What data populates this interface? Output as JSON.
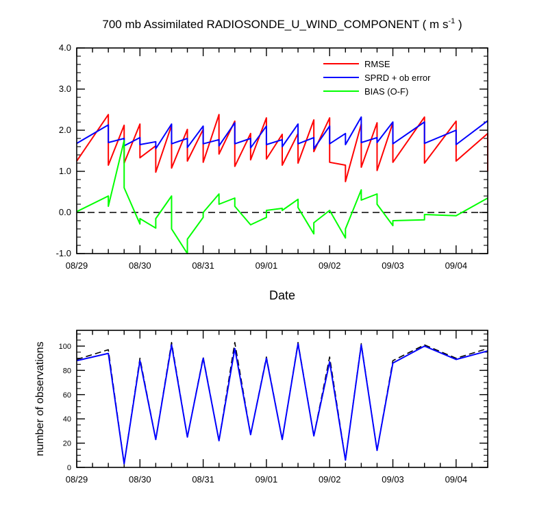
{
  "chart_data": [
    {
      "type": "line",
      "title_main": "700 mb Assimilated RADIOSONDE_U_WIND_COMPONENT ( m s",
      "title_sup": "-1",
      "title_end": " )",
      "xlabel": "Date",
      "xticklabels": [
        "08/29",
        "08/30",
        "08/31",
        "09/01",
        "09/02",
        "09/03",
        "09/04"
      ],
      "yticklabels": [
        "4.0",
        "3.0",
        "2.0",
        "1.0",
        "0.0",
        "-1.0"
      ],
      "yticks": [
        4,
        3,
        2,
        1,
        0,
        -1
      ],
      "ylim": [
        -1,
        4
      ],
      "xlim": [
        0,
        6.5
      ],
      "zero_line": "dashed",
      "legend_placement": "top-right",
      "series": [
        {
          "name": "RMSE",
          "color": "#ff0000",
          "points": [
            [
              0,
              1.25
            ],
            [
              0.5,
              2.38
            ],
            [
              0.5,
              1.15
            ],
            [
              0.75,
              2.12
            ],
            [
              0.75,
              1.2
            ],
            [
              1.0,
              2.15
            ],
            [
              1.0,
              1.33
            ],
            [
              1.25,
              1.62
            ],
            [
              1.25,
              0.98
            ],
            [
              1.5,
              2.12
            ],
            [
              1.5,
              1.08
            ],
            [
              1.75,
              2.02
            ],
            [
              1.75,
              1.25
            ],
            [
              2.0,
              2.02
            ],
            [
              2.0,
              1.22
            ],
            [
              2.25,
              2.38
            ],
            [
              2.25,
              1.42
            ],
            [
              2.5,
              2.22
            ],
            [
              2.5,
              1.12
            ],
            [
              2.75,
              1.92
            ],
            [
              2.75,
              1.28
            ],
            [
              3.0,
              2.3
            ],
            [
              3.0,
              1.3
            ],
            [
              3.25,
              1.9
            ],
            [
              3.25,
              1.15
            ],
            [
              3.5,
              1.92
            ],
            [
              3.5,
              1.2
            ],
            [
              3.75,
              2.25
            ],
            [
              3.75,
              1.48
            ],
            [
              4.0,
              2.3
            ],
            [
              4.0,
              1.22
            ],
            [
              4.25,
              1.15
            ],
            [
              4.25,
              0.75
            ],
            [
              4.5,
              2.15
            ],
            [
              4.5,
              1.1
            ],
            [
              4.75,
              2.18
            ],
            [
              4.75,
              1.02
            ],
            [
              5.0,
              2.18
            ],
            [
              5.0,
              1.22
            ],
            [
              5.5,
              2.32
            ],
            [
              5.5,
              1.2
            ],
            [
              6.0,
              2.22
            ],
            [
              6.0,
              1.25
            ],
            [
              6.5,
              1.92
            ],
            [
              6.5,
              1.0
            ]
          ]
        },
        {
          "name": "SPRD + ob error",
          "color": "#0000ff",
          "points": [
            [
              0,
              1.68
            ],
            [
              0.5,
              2.13
            ],
            [
              0.5,
              1.7
            ],
            [
              0.75,
              1.8
            ],
            [
              0.75,
              1.62
            ],
            [
              1.0,
              1.82
            ],
            [
              1.0,
              1.65
            ],
            [
              1.25,
              1.72
            ],
            [
              1.25,
              1.55
            ],
            [
              1.5,
              2.15
            ],
            [
              1.5,
              1.67
            ],
            [
              1.75,
              1.8
            ],
            [
              1.75,
              1.58
            ],
            [
              2.0,
              2.1
            ],
            [
              2.0,
              1.67
            ],
            [
              2.25,
              1.77
            ],
            [
              2.25,
              1.62
            ],
            [
              2.5,
              2.18
            ],
            [
              2.5,
              1.67
            ],
            [
              2.75,
              1.8
            ],
            [
              2.75,
              1.57
            ],
            [
              3.0,
              2.1
            ],
            [
              3.0,
              1.65
            ],
            [
              3.25,
              1.77
            ],
            [
              3.25,
              1.6
            ],
            [
              3.5,
              2.15
            ],
            [
              3.5,
              1.67
            ],
            [
              3.75,
              1.82
            ],
            [
              3.75,
              1.55
            ],
            [
              4.0,
              2.1
            ],
            [
              4.0,
              1.67
            ],
            [
              4.25,
              1.92
            ],
            [
              4.25,
              1.65
            ],
            [
              4.5,
              2.32
            ],
            [
              4.5,
              1.7
            ],
            [
              4.75,
              1.82
            ],
            [
              4.75,
              1.7
            ],
            [
              5.0,
              2.2
            ],
            [
              5.0,
              1.67
            ],
            [
              5.5,
              2.2
            ],
            [
              5.5,
              1.68
            ],
            [
              6.0,
              2.0
            ],
            [
              6.0,
              1.65
            ],
            [
              6.5,
              2.23
            ]
          ]
        },
        {
          "name": "BIAS (O-F)",
          "color": "#00ff00",
          "points": [
            [
              0,
              0.02
            ],
            [
              0.5,
              0.4
            ],
            [
              0.5,
              0.15
            ],
            [
              0.75,
              1.75
            ],
            [
              0.75,
              0.6
            ],
            [
              1.0,
              -0.28
            ],
            [
              1.0,
              -0.15
            ],
            [
              1.25,
              -0.38
            ],
            [
              1.25,
              -0.15
            ],
            [
              1.5,
              0.4
            ],
            [
              1.5,
              -0.4
            ],
            [
              1.75,
              -1.0
            ],
            [
              1.75,
              -0.65
            ],
            [
              2.0,
              -0.12
            ],
            [
              2.0,
              0.0
            ],
            [
              2.25,
              0.45
            ],
            [
              2.25,
              0.2
            ],
            [
              2.5,
              0.35
            ],
            [
              2.5,
              0.15
            ],
            [
              2.75,
              -0.3
            ],
            [
              2.75,
              -0.3
            ],
            [
              3.0,
              -0.12
            ],
            [
              3.0,
              0.05
            ],
            [
              3.25,
              0.1
            ],
            [
              3.25,
              0.05
            ],
            [
              3.5,
              0.32
            ],
            [
              3.5,
              0.12
            ],
            [
              3.75,
              -0.52
            ],
            [
              3.75,
              -0.25
            ],
            [
              4.0,
              0.05
            ],
            [
              4.25,
              -0.62
            ],
            [
              4.25,
              -0.4
            ],
            [
              4.5,
              0.55
            ],
            [
              4.5,
              0.3
            ],
            [
              4.75,
              0.45
            ],
            [
              4.75,
              0.2
            ],
            [
              5.0,
              -0.32
            ],
            [
              5.0,
              -0.2
            ],
            [
              5.5,
              -0.18
            ],
            [
              5.5,
              -0.05
            ],
            [
              6.0,
              -0.08
            ],
            [
              6.5,
              0.35
            ]
          ]
        }
      ]
    },
    {
      "type": "line",
      "ylabel": "number of observations",
      "xticklabels": [
        "08/29",
        "08/30",
        "08/31",
        "09/01",
        "09/02",
        "09/03",
        "09/04"
      ],
      "yticklabels": [
        "100",
        "80",
        "60",
        "40",
        "20",
        "0"
      ],
      "yticks": [
        100,
        80,
        60,
        40,
        20,
        0
      ],
      "ylim": [
        0,
        113
      ],
      "xlim": [
        0,
        6.5
      ],
      "series": [
        {
          "color": "#000000",
          "style": "dashed",
          "x": [
            0,
            0.5,
            0.75,
            1.0,
            1.25,
            1.5,
            1.75,
            2.0,
            2.25,
            2.5,
            2.75,
            3.0,
            3.25,
            3.5,
            3.75,
            4.0,
            4.25,
            4.5,
            4.75,
            5.0,
            5.5,
            6.0,
            6.5
          ],
          "values": [
            89,
            97,
            3,
            90,
            23,
            103,
            25,
            91,
            22,
            103,
            27,
            91,
            23,
            103,
            26,
            91,
            6,
            102,
            14,
            88,
            101,
            90,
            98
          ]
        },
        {
          "color": "#0000ff",
          "style": "solid",
          "x": [
            0,
            0.5,
            0.75,
            1.0,
            1.25,
            1.5,
            1.75,
            2.0,
            2.25,
            2.5,
            2.75,
            3.0,
            3.25,
            3.5,
            3.75,
            4.0,
            4.25,
            4.5,
            4.75,
            5.0,
            5.5,
            6.0,
            6.5
          ],
          "values": [
            88,
            94,
            3,
            88,
            23,
            101,
            25,
            90,
            22,
            98,
            27,
            90,
            23,
            102,
            26,
            87,
            6,
            101,
            14,
            86,
            100,
            89,
            96
          ]
        }
      ]
    }
  ]
}
